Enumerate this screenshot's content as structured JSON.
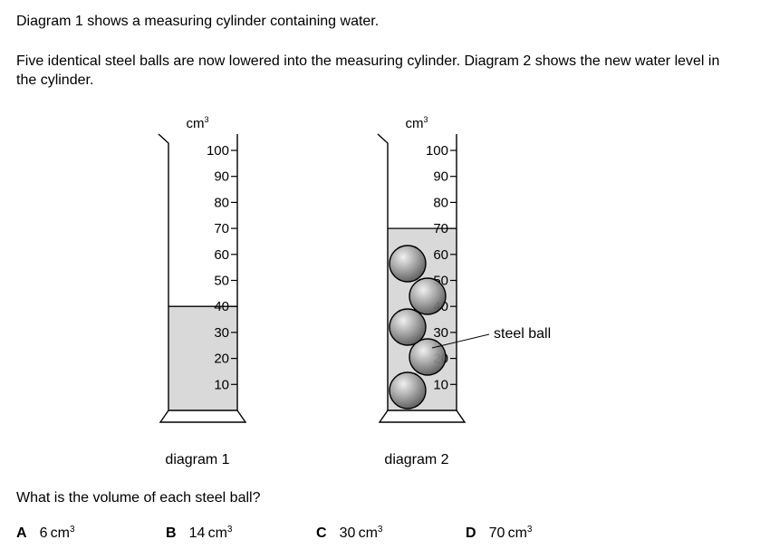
{
  "intro": {
    "line1": "Diagram 1 shows a measuring cylinder containing water.",
    "line2": "Five identical steel balls are now lowered into the measuring cylinder. Diagram 2 shows the new water level in the cylinder."
  },
  "diagram1": {
    "unit": "cm",
    "unit_power": "3",
    "scale_labels": [
      "100",
      "90",
      "80",
      "70",
      "60",
      "50",
      "40",
      "30",
      "20",
      "10"
    ],
    "water_level": 40,
    "caption": "diagram 1"
  },
  "diagram2": {
    "unit": "cm",
    "unit_power": "3",
    "scale_labels": [
      "100",
      "90",
      "80",
      "70",
      "60",
      "50",
      "40",
      "30",
      "20",
      "10"
    ],
    "water_level": 70,
    "ball_count": 5,
    "ball_label": "steel ball",
    "caption": "diagram 2"
  },
  "colors": {
    "water": "#d9d9d9",
    "ball": "#7a7a7a",
    "outline": "#000000"
  },
  "question": {
    "text": "What is the volume of each steel ball?",
    "options": [
      {
        "letter": "A",
        "value": "6",
        "unit": "cm",
        "power": "3"
      },
      {
        "letter": "B",
        "value": "14",
        "unit": "cm",
        "power": "3"
      },
      {
        "letter": "C",
        "value": "30",
        "unit": "cm",
        "power": "3"
      },
      {
        "letter": "D",
        "value": "70",
        "unit": "cm",
        "power": "3"
      }
    ]
  }
}
